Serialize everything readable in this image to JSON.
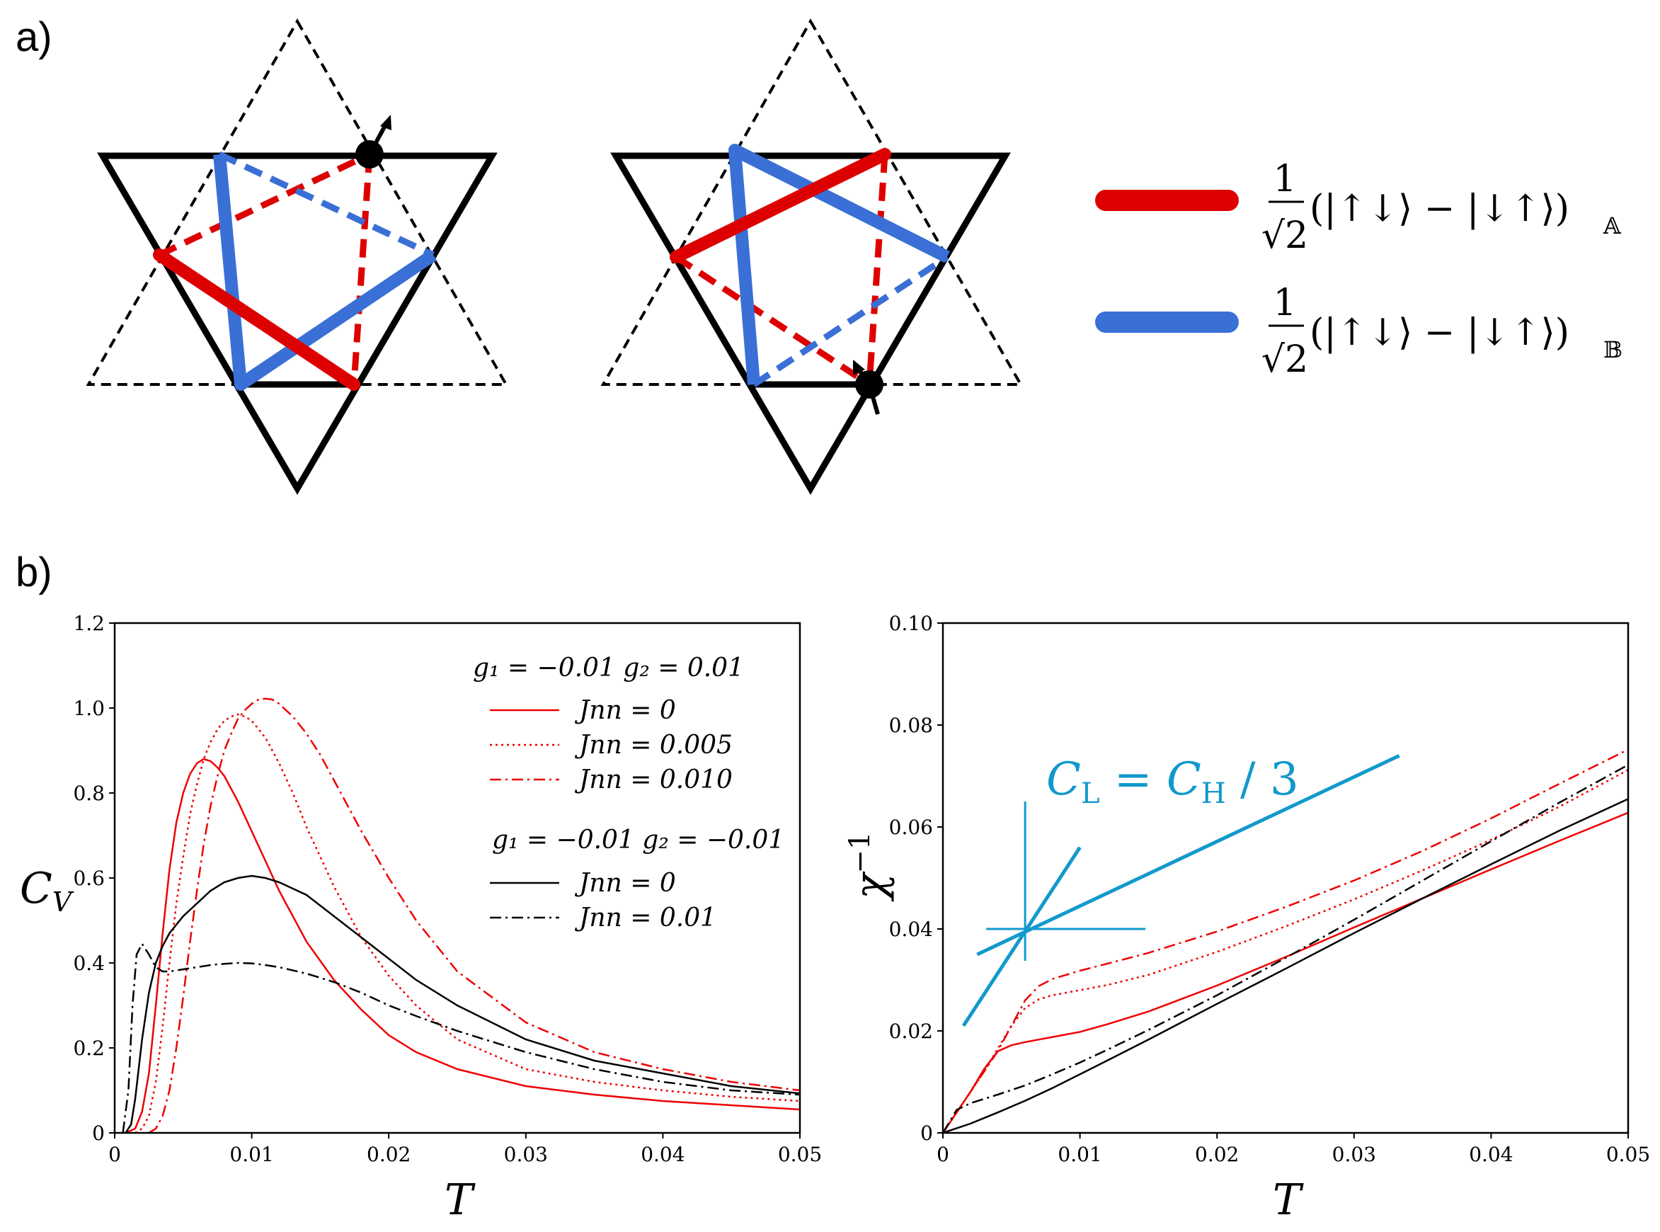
{
  "panel_labels": {
    "a": "a)",
    "b": "b)"
  },
  "diagram": {
    "legend_red": {
      "color": "#dd0000",
      "numerator": "1",
      "denominator": "√2",
      "text": "(|↑↓⟩ − |↓↑⟩)",
      "subscript": "𝔸"
    },
    "legend_blue": {
      "color": "#3a6fd6",
      "numerator": "1",
      "denominator": "√2",
      "text": "(|↑↓⟩ − |↓↑⟩)",
      "subscript": "𝔹"
    }
  },
  "chart_data": [
    {
      "type": "line",
      "id": "cv",
      "xlabel": "T",
      "ylabel": "C",
      "ylabel_sub": "V",
      "xlim": [
        0,
        0.05
      ],
      "ylim": [
        0,
        1.2
      ],
      "xticks": [
        "0",
        "0.01",
        "0.02",
        "0.03",
        "0.04",
        "0.05"
      ],
      "xtick_values": [
        0,
        0.01,
        0.02,
        0.03,
        0.04,
        0.05
      ],
      "yticks": [
        "0",
        "0.2",
        "0.4",
        "0.6",
        "0.8",
        "1.0",
        "1.2"
      ],
      "ytick_values": [
        0,
        0.2,
        0.4,
        0.6,
        0.8,
        1.0,
        1.2
      ],
      "legend": {
        "group1_title": "g₁ = −0.01 g₂ = 0.01",
        "group2_title": "g₁ = −0.01 g₂ = −0.01",
        "entries": [
          {
            "label": "J_nn = 0",
            "text": "Jnn = 0",
            "color": "#ee0000",
            "dash": "solid",
            "group": 1
          },
          {
            "label": "J_nn = 0.005",
            "text": "Jnn = 0.005",
            "color": "#ee0000",
            "dash": "dotted",
            "group": 1
          },
          {
            "label": "J_nn = 0.010",
            "text": "Jnn = 0.010",
            "color": "#ee0000",
            "dash": "dashdot",
            "group": 1
          },
          {
            "label": "J_nn = 0",
            "text": "Jnn = 0",
            "color": "#000000",
            "dash": "solid",
            "group": 2
          },
          {
            "label": "J_nn = 0.01",
            "text": "Jnn = 0.01",
            "color": "#000000",
            "dash": "dashdot",
            "group": 2
          }
        ]
      },
      "series": [
        {
          "name": "g2=0.01, Jnn=0",
          "color": "#ee0000",
          "dash": "solid",
          "x": [
            0.0008,
            0.0015,
            0.002,
            0.0025,
            0.003,
            0.0035,
            0.004,
            0.0045,
            0.005,
            0.0055,
            0.006,
            0.0065,
            0.007,
            0.0075,
            0.008,
            0.009,
            0.01,
            0.011,
            0.012,
            0.013,
            0.014,
            0.016,
            0.018,
            0.02,
            0.022,
            0.025,
            0.03,
            0.035,
            0.04,
            0.045,
            0.05
          ],
          "y": [
            0,
            0.01,
            0.05,
            0.14,
            0.3,
            0.47,
            0.62,
            0.73,
            0.8,
            0.845,
            0.87,
            0.88,
            0.875,
            0.86,
            0.84,
            0.78,
            0.71,
            0.64,
            0.57,
            0.51,
            0.45,
            0.36,
            0.29,
            0.23,
            0.19,
            0.15,
            0.11,
            0.09,
            0.075,
            0.065,
            0.055
          ]
        },
        {
          "name": "g2=0.01, Jnn=0.005",
          "color": "#ee0000",
          "dash": "dotted",
          "x": [
            0.0015,
            0.002,
            0.0025,
            0.003,
            0.0035,
            0.004,
            0.0045,
            0.005,
            0.0055,
            0.006,
            0.0065,
            0.007,
            0.0075,
            0.008,
            0.0085,
            0.009,
            0.0095,
            0.01,
            0.011,
            0.012,
            0.013,
            0.014,
            0.016,
            0.018,
            0.02,
            0.022,
            0.025,
            0.03,
            0.035,
            0.04,
            0.045,
            0.05
          ],
          "y": [
            0,
            0.01,
            0.04,
            0.12,
            0.25,
            0.4,
            0.54,
            0.65,
            0.75,
            0.82,
            0.88,
            0.92,
            0.95,
            0.97,
            0.98,
            0.985,
            0.98,
            0.97,
            0.93,
            0.87,
            0.8,
            0.72,
            0.58,
            0.46,
            0.37,
            0.3,
            0.22,
            0.15,
            0.12,
            0.1,
            0.085,
            0.075
          ]
        },
        {
          "name": "g2=0.01, Jnn=0.010",
          "color": "#ee0000",
          "dash": "dashdot",
          "x": [
            0.0025,
            0.003,
            0.0035,
            0.004,
            0.0045,
            0.005,
            0.0055,
            0.006,
            0.0065,
            0.007,
            0.0075,
            0.008,
            0.0085,
            0.009,
            0.0095,
            0.01,
            0.0105,
            0.011,
            0.0115,
            0.012,
            0.013,
            0.014,
            0.015,
            0.016,
            0.018,
            0.02,
            0.022,
            0.025,
            0.03,
            0.035,
            0.04,
            0.045,
            0.05
          ],
          "y": [
            0,
            0.01,
            0.04,
            0.1,
            0.2,
            0.32,
            0.45,
            0.57,
            0.68,
            0.77,
            0.84,
            0.9,
            0.94,
            0.975,
            0.995,
            1.01,
            1.02,
            1.022,
            1.02,
            1.01,
            0.98,
            0.94,
            0.89,
            0.83,
            0.71,
            0.6,
            0.5,
            0.38,
            0.26,
            0.19,
            0.15,
            0.12,
            0.1
          ]
        },
        {
          "name": "g2=-0.01, Jnn=0",
          "color": "#000000",
          "dash": "solid",
          "x": [
            0.0008,
            0.0012,
            0.0015,
            0.002,
            0.0025,
            0.003,
            0.0035,
            0.004,
            0.0045,
            0.005,
            0.006,
            0.007,
            0.008,
            0.009,
            0.01,
            0.011,
            0.012,
            0.013,
            0.014,
            0.016,
            0.018,
            0.02,
            0.022,
            0.025,
            0.03,
            0.035,
            0.04,
            0.045,
            0.05
          ],
          "y": [
            0,
            0.02,
            0.08,
            0.22,
            0.33,
            0.4,
            0.44,
            0.47,
            0.49,
            0.51,
            0.54,
            0.57,
            0.59,
            0.6,
            0.605,
            0.6,
            0.59,
            0.575,
            0.56,
            0.51,
            0.46,
            0.41,
            0.36,
            0.3,
            0.22,
            0.17,
            0.14,
            0.11,
            0.093
          ]
        },
        {
          "name": "g2=-0.01, Jnn=0.01",
          "color": "#000000",
          "dash": "dashdot",
          "x": [
            0.0006,
            0.001,
            0.0013,
            0.0016,
            0.002,
            0.0025,
            0.003,
            0.0035,
            0.004,
            0.005,
            0.006,
            0.007,
            0.008,
            0.009,
            0.01,
            0.011,
            0.012,
            0.014,
            0.016,
            0.018,
            0.02,
            0.022,
            0.025,
            0.03,
            0.035,
            0.04,
            0.045,
            0.05
          ],
          "y": [
            0,
            0.1,
            0.3,
            0.42,
            0.445,
            0.42,
            0.39,
            0.38,
            0.38,
            0.385,
            0.39,
            0.395,
            0.398,
            0.4,
            0.399,
            0.395,
            0.39,
            0.375,
            0.355,
            0.33,
            0.3,
            0.275,
            0.24,
            0.19,
            0.15,
            0.12,
            0.1,
            0.09
          ]
        }
      ]
    },
    {
      "type": "line",
      "id": "chi",
      "xlabel": "T",
      "ylabel": "χ",
      "ylabel_sup": "−1",
      "xlim": [
        0,
        0.05
      ],
      "ylim": [
        0,
        0.1
      ],
      "xticks": [
        "0",
        "0.01",
        "0.02",
        "0.03",
        "0.04",
        "0.05"
      ],
      "xtick_values": [
        0,
        0.01,
        0.02,
        0.03,
        0.04,
        0.05
      ],
      "yticks": [
        "0",
        "0.02",
        "0.04",
        "0.06",
        "0.08",
        "0.10"
      ],
      "ytick_values": [
        0,
        0.02,
        0.04,
        0.06,
        0.08,
        0.1
      ],
      "annotation": {
        "color": "#1199cc",
        "text_c": "C",
        "text_l": "L",
        "text_eq": " = ",
        "text_h": "H",
        "text_div": " / 3",
        "cross_center": [
          0.006,
          0.04
        ],
        "line_steep": [
          [
            0.0015,
            0.021
          ],
          [
            0.01,
            0.056
          ]
        ],
        "line_shallow": [
          [
            0.0025,
            0.035
          ],
          [
            0.0333,
            0.074
          ]
        ]
      },
      "series": [
        {
          "name": "g2=0.01, Jnn=0",
          "color": "#ee0000",
          "dash": "solid",
          "x": [
            0,
            0.001,
            0.002,
            0.003,
            0.004,
            0.005,
            0.006,
            0.007,
            0.008,
            0.01,
            0.012,
            0.015,
            0.02,
            0.025,
            0.03,
            0.035,
            0.04,
            0.045,
            0.05
          ],
          "y": [
            0,
            0.004,
            0.008,
            0.0125,
            0.016,
            0.0172,
            0.0178,
            0.0183,
            0.0188,
            0.0198,
            0.0213,
            0.0238,
            0.0289,
            0.0345,
            0.0403,
            0.046,
            0.0517,
            0.0573,
            0.0628
          ]
        },
        {
          "name": "g2=0.01, Jnn=0.005",
          "color": "#ee0000",
          "dash": "dotted",
          "x": [
            0,
            0.001,
            0.002,
            0.003,
            0.004,
            0.005,
            0.006,
            0.007,
            0.008,
            0.009,
            0.01,
            0.012,
            0.015,
            0.02,
            0.025,
            0.03,
            0.035,
            0.04,
            0.045,
            0.05
          ],
          "y": [
            0,
            0.004,
            0.008,
            0.012,
            0.0165,
            0.021,
            0.0245,
            0.0262,
            0.027,
            0.0275,
            0.028,
            0.029,
            0.031,
            0.0355,
            0.0405,
            0.0458,
            0.0515,
            0.0575,
            0.064,
            0.0712
          ]
        },
        {
          "name": "g2=0.01, Jnn=0.010",
          "color": "#ee0000",
          "dash": "dashdot",
          "x": [
            0,
            0.001,
            0.002,
            0.003,
            0.004,
            0.005,
            0.006,
            0.007,
            0.008,
            0.009,
            0.01,
            0.012,
            0.015,
            0.02,
            0.025,
            0.03,
            0.035,
            0.04,
            0.045,
            0.05
          ],
          "y": [
            0,
            0.004,
            0.008,
            0.012,
            0.016,
            0.021,
            0.026,
            0.0288,
            0.0302,
            0.031,
            0.0318,
            0.0332,
            0.0353,
            0.0395,
            0.0443,
            0.0495,
            0.0553,
            0.0617,
            0.0685,
            0.0752
          ]
        },
        {
          "name": "g2=-0.01, Jnn=0",
          "color": "#000000",
          "dash": "solid",
          "x": [
            0,
            0.002,
            0.004,
            0.006,
            0.008,
            0.01,
            0.012,
            0.015,
            0.02,
            0.025,
            0.03,
            0.035,
            0.04,
            0.045,
            0.05
          ],
          "y": [
            0,
            0.0018,
            0.004,
            0.0063,
            0.0088,
            0.0115,
            0.0142,
            0.0183,
            0.0253,
            0.0322,
            0.0392,
            0.046,
            0.0527,
            0.0593,
            0.0655
          ]
        },
        {
          "name": "g2=-0.01, Jnn=0.01",
          "color": "#000000",
          "dash": "dashdot",
          "x": [
            0,
            0.001,
            0.002,
            0.004,
            0.006,
            0.008,
            0.01,
            0.012,
            0.015,
            0.02,
            0.025,
            0.03,
            0.035,
            0.04,
            0.045,
            0.05
          ],
          "y": [
            0,
            0.0045,
            0.0058,
            0.0075,
            0.0093,
            0.0115,
            0.0138,
            0.0163,
            0.0202,
            0.027,
            0.0343,
            0.0418,
            0.0495,
            0.0572,
            0.0648,
            0.0722
          ]
        }
      ]
    }
  ]
}
